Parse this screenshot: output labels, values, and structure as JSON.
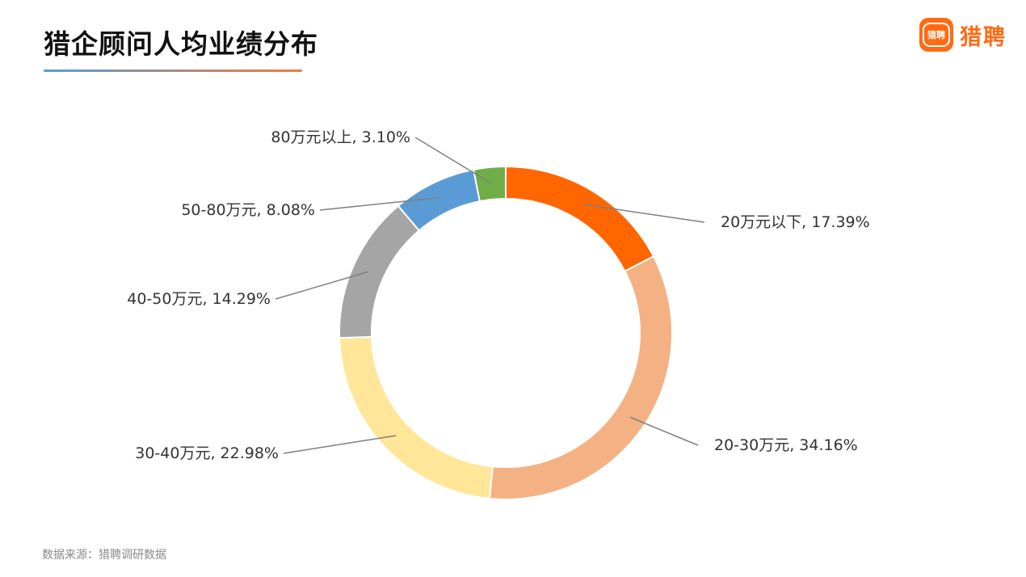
{
  "header": {
    "title": "猎企顾问人均业绩分布",
    "underline_colors": [
      "#5b9bd5",
      "#f07a3d"
    ]
  },
  "brand": {
    "icon_text": "猎聘",
    "name": "猎聘",
    "color": "#ff6a13"
  },
  "footer": {
    "source": "数据来源：猎聘调研数据"
  },
  "chart_data": {
    "type": "pie",
    "donut": true,
    "title": "",
    "categories": [
      "20万元以下",
      "20-30万元",
      "30-40万元",
      "40-50万元",
      "50-80万元",
      "80万元以上"
    ],
    "values": [
      17.39,
      34.16,
      22.98,
      14.29,
      8.08,
      3.1
    ],
    "labels": [
      "20万元以下, 17.39%",
      "20-30万元, 34.16%",
      "30-40万元, 22.98%",
      "40-50万元, 14.29%",
      "50-80万元, 8.08%",
      "80万元以上, 3.10%"
    ],
    "colors": [
      "#ff6600",
      "#f4b183",
      "#ffe699",
      "#a5a5a5",
      "#5b9bd5",
      "#70ad47"
    ],
    "legend": "none"
  }
}
